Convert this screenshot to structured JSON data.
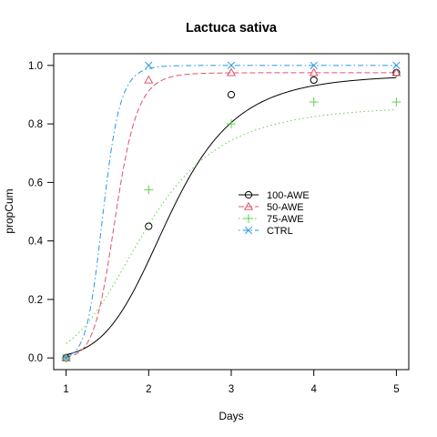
{
  "chart_data": {
    "type": "line",
    "title": "Lactuca sativa",
    "xlabel": "Days",
    "ylabel": "propCum",
    "xlim": [
      0.85,
      5.15
    ],
    "ylim": [
      -0.04,
      1.04
    ],
    "x_ticks": [
      1,
      2,
      3,
      4,
      5
    ],
    "y_ticks": [
      0.0,
      0.2,
      0.4,
      0.6,
      0.8,
      1.0
    ],
    "y_tick_labels": [
      "0.0",
      "0.2",
      "0.4",
      "0.6",
      "0.8",
      "1.0"
    ],
    "grid": false,
    "legend_position": "center-right",
    "series": [
      {
        "name": "100-AWE",
        "color": "#000000",
        "linestyle": "solid",
        "marker": "circle",
        "x": [
          1,
          2,
          3,
          4,
          5
        ],
        "points": [
          0.0,
          0.45,
          0.9,
          0.95,
          0.975
        ],
        "fit": {
          "d": 0.97,
          "e": 2.25,
          "b": 5.5
        }
      },
      {
        "name": "50-AWE",
        "color": "#DF536B",
        "linestyle": "dashed",
        "marker": "triangle",
        "x": [
          1,
          2,
          3,
          4,
          5
        ],
        "points": [
          0.0,
          0.95,
          0.975,
          0.975,
          0.975
        ],
        "fit": {
          "d": 0.975,
          "e": 1.6,
          "b": 12
        }
      },
      {
        "name": "75-AWE",
        "color": "#61D04F",
        "linestyle": "dotted",
        "marker": "plus",
        "x": [
          1,
          2,
          3,
          4,
          5
        ],
        "points": [
          0.0,
          0.575,
          0.8,
          0.875,
          0.875
        ],
        "fit": {
          "d": 0.865,
          "e": 1.95,
          "b": 4.2
        }
      },
      {
        "name": "CTRL",
        "color": "#2297E6",
        "linestyle": "dotdash",
        "marker": "cross",
        "x": [
          1,
          2,
          3,
          4,
          5
        ],
        "points": [
          0.0,
          1.0,
          1.0,
          1.0,
          1.0
        ],
        "fit": {
          "d": 1.0,
          "e": 1.45,
          "b": 14
        }
      }
    ]
  }
}
